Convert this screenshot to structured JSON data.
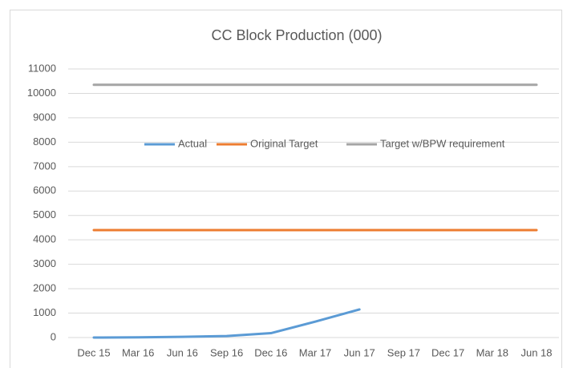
{
  "chart_data": {
    "type": "line",
    "title": "CC Block Production (000)",
    "categories": [
      "Dec 15",
      "Mar 16",
      "Jun 16",
      "Sep 16",
      "Dec 16",
      "Mar 17",
      "Jun 17",
      "Sep 17",
      "Dec 17",
      "Mar 18",
      "Jun 18"
    ],
    "series": [
      {
        "name": "Actual",
        "color": "#5b9bd5",
        "values": [
          0,
          10,
          30,
          60,
          180,
          650,
          1150,
          null,
          null,
          null,
          null
        ]
      },
      {
        "name": "Original Target",
        "color": "#ed7d31",
        "values": [
          4400,
          4400,
          4400,
          4400,
          4400,
          4400,
          4400,
          4400,
          4400,
          4400,
          4400
        ]
      },
      {
        "name": "Target w/BPW requirement",
        "color": "#a5a5a5",
        "values": [
          10350,
          10350,
          10350,
          10350,
          10350,
          10350,
          10350,
          10350,
          10350,
          10350,
          10350
        ]
      }
    ],
    "ylim": [
      0,
      11000
    ],
    "yticks": [
      0,
      1000,
      2000,
      3000,
      4000,
      5000,
      6000,
      7000,
      8000,
      9000,
      10000,
      11000
    ],
    "grid": true,
    "legend": "top"
  }
}
